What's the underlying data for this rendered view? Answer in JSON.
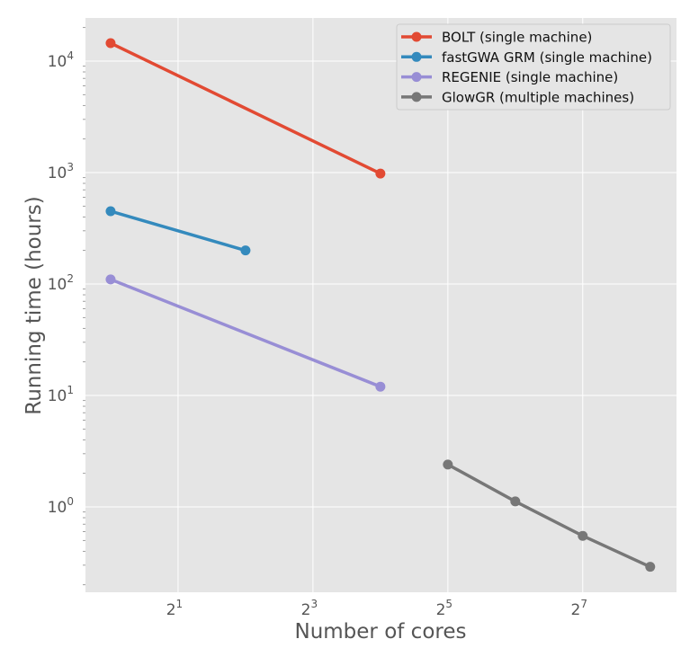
{
  "chart_data": {
    "type": "line",
    "title": "",
    "xlabel": "Number of cores",
    "ylabel": "Running time (hours)",
    "xscale": "log2",
    "yscale": "log10",
    "xlim_log2": [
      -0.373,
      8.39
    ],
    "ylim_log10": [
      -0.766,
      4.387
    ],
    "xticks": [
      {
        "base": "2",
        "exp": "1",
        "value": 2
      },
      {
        "base": "2",
        "exp": "3",
        "value": 8
      },
      {
        "base": "2",
        "exp": "5",
        "value": 32
      },
      {
        "base": "2",
        "exp": "7",
        "value": 128
      }
    ],
    "yticks": [
      {
        "base": "10",
        "exp": "0",
        "value": 1
      },
      {
        "base": "10",
        "exp": "1",
        "value": 10
      },
      {
        "base": "10",
        "exp": "2",
        "value": 100
      },
      {
        "base": "10",
        "exp": "3",
        "value": 1000
      },
      {
        "base": "10",
        "exp": "4",
        "value": 10000
      }
    ],
    "grid": true,
    "legend_position": "top-right",
    "series": [
      {
        "name": "BOLT (single machine)",
        "color": "#E24A33",
        "x": [
          1,
          16
        ],
        "y": [
          14500,
          980
        ]
      },
      {
        "name": "fastGWA GRM (single machine)",
        "color": "#348ABD",
        "x": [
          1,
          4
        ],
        "y": [
          450,
          200
        ]
      },
      {
        "name": "REGENIE (single machine)",
        "color": "#988ED5",
        "x": [
          1,
          16
        ],
        "y": [
          110,
          12
        ]
      },
      {
        "name": "GlowGR (multiple machines)",
        "color": "#777777",
        "x": [
          32,
          64,
          128,
          256
        ],
        "y": [
          2.4,
          1.12,
          0.55,
          0.29
        ]
      }
    ]
  }
}
